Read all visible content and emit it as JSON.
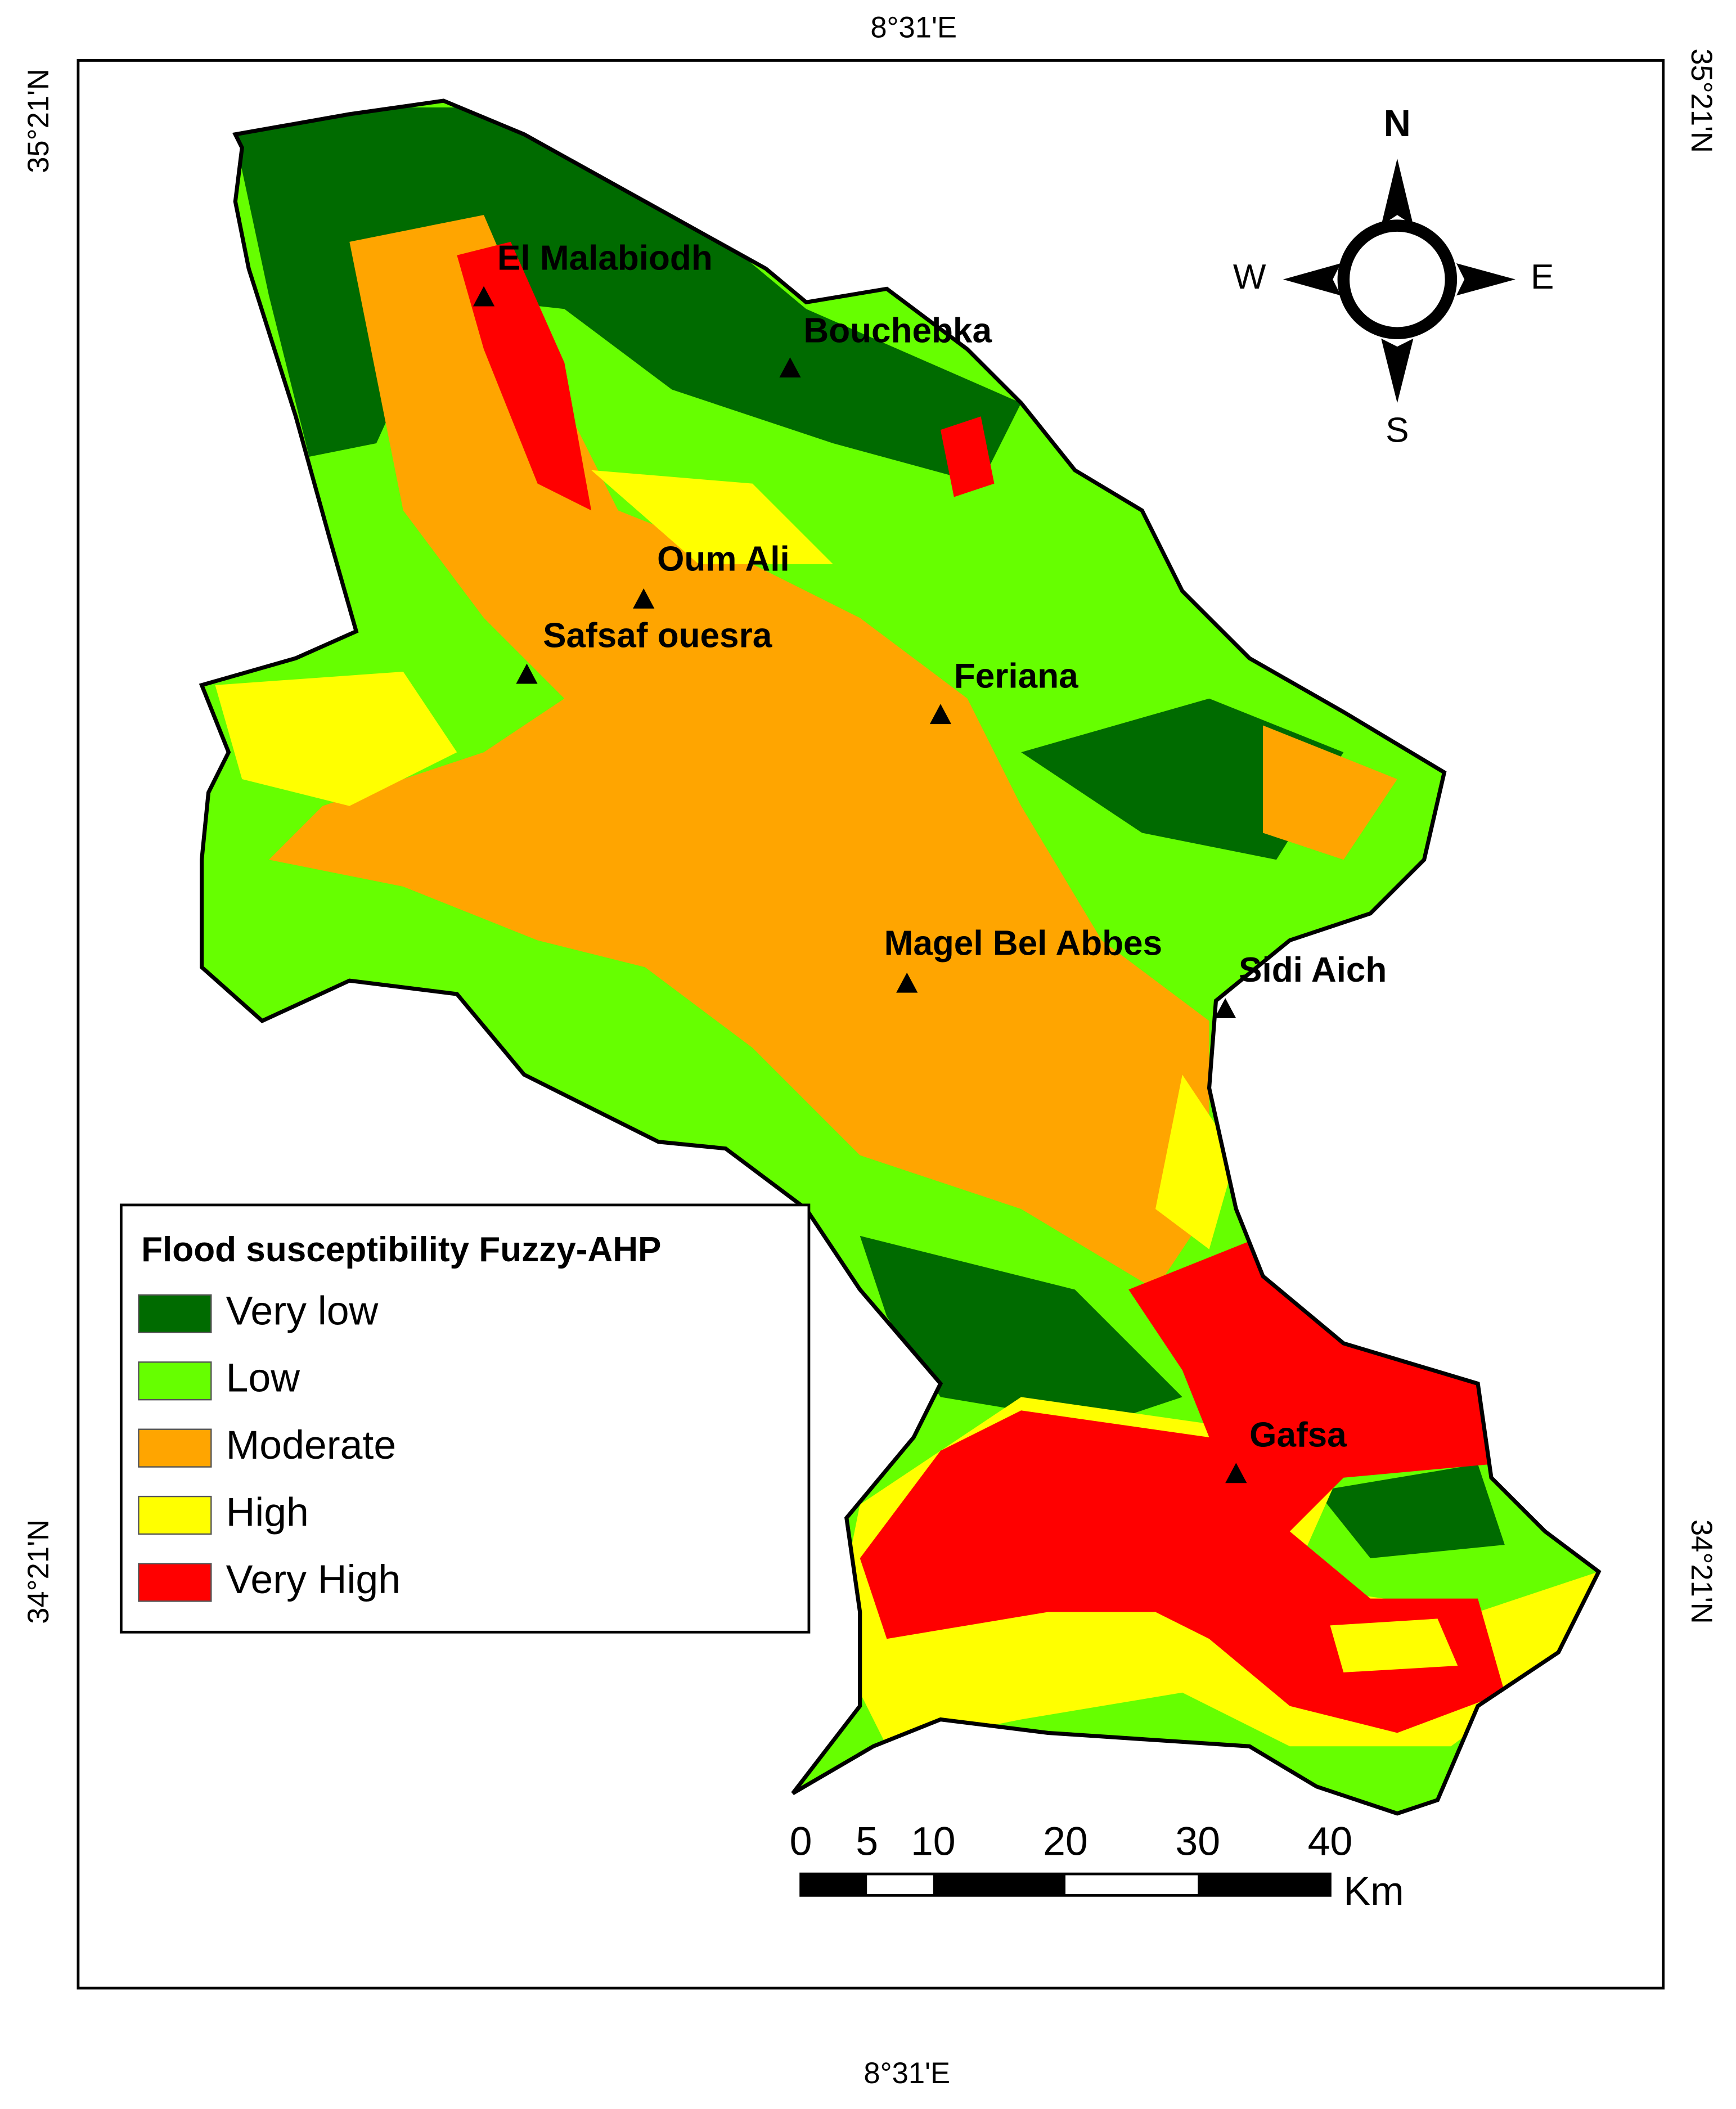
{
  "map": {
    "graticule": {
      "top": "8°31'E",
      "bottom": "8°31'E",
      "left": [
        "35°21'N",
        "34°21'N"
      ],
      "right": [
        "35°21'N",
        "34°21'N"
      ]
    },
    "compass": {
      "n": "N",
      "s": "S",
      "w": "W",
      "e": "E"
    },
    "places": [
      "El Malabiodh",
      "Bouchebka",
      "Oum Ali",
      "Safsaf ouesra",
      "Feriana",
      "Magel Bel Abbes",
      "Sidi Aich",
      "Gafsa"
    ],
    "legend": {
      "title": "Flood susceptibility Fuzzy-AHP",
      "items": [
        {
          "label": "Very low",
          "color": "#006b00"
        },
        {
          "label": "Low",
          "color": "#66ff00"
        },
        {
          "label": "Moderate",
          "color": "#ffa500"
        },
        {
          "label": "High",
          "color": "#ffff00"
        },
        {
          "label": "Very High",
          "color": "#ff0000"
        }
      ]
    },
    "scale_bar": {
      "ticks": [
        0,
        5,
        10,
        20,
        30,
        40
      ],
      "unit": "Km"
    }
  }
}
